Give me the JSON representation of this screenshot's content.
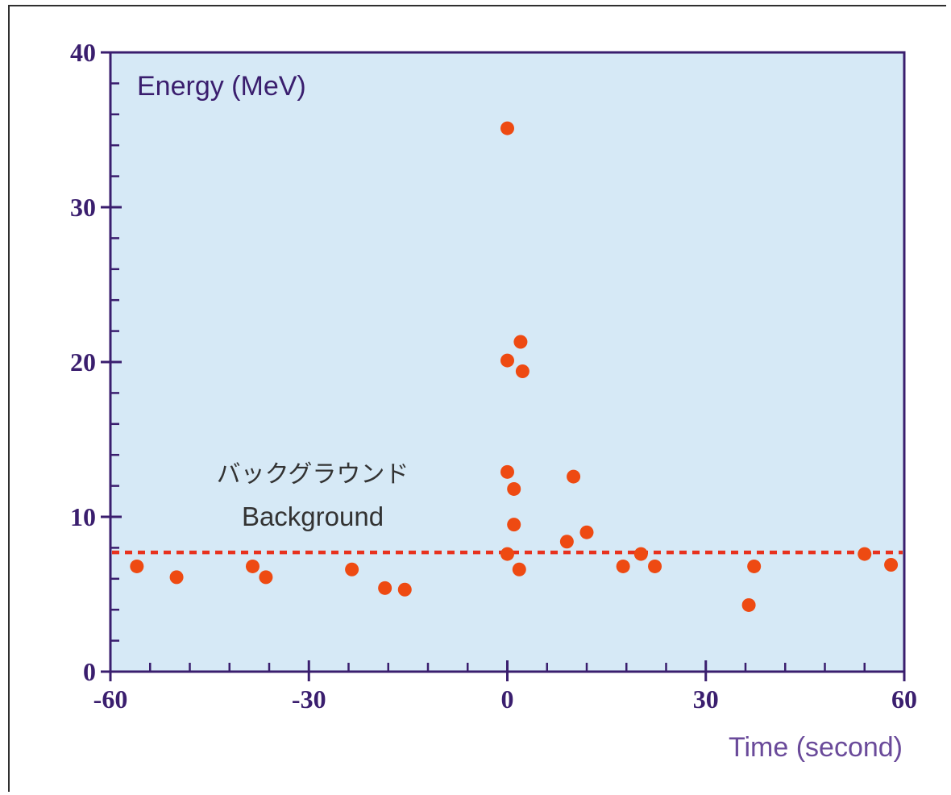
{
  "chart_data": {
    "type": "scatter",
    "ylabel": "Energy (MeV)",
    "xlabel": "Time (second)",
    "xlim": [
      -60,
      60
    ],
    "ylim": [
      0,
      40
    ],
    "x_ticks": [
      -60,
      -30,
      0,
      30,
      60
    ],
    "x_tick_labels": [
      "-60",
      "-30",
      "0",
      "30",
      "60"
    ],
    "y_ticks": [
      0,
      10,
      20,
      30,
      40
    ],
    "y_tick_labels": [
      "0",
      "10",
      "20",
      "30",
      "40"
    ],
    "grid": false,
    "legend": "none",
    "background_label_jp": "バックグラウンド",
    "background_label_en": "Background",
    "background_level": 7.7,
    "colors": {
      "plot_bg": "#d6e9f6",
      "axis": "#3a1e6e",
      "points": "#ee4a12",
      "dashed_line": "#e8321e",
      "tick_text": "#3a1e6e",
      "label_text": "#3a1e6e",
      "xlabel_text": "#6a4a9a",
      "annotation_text": "#333333"
    },
    "points": [
      {
        "x": -56,
        "y": 6.8
      },
      {
        "x": -50,
        "y": 6.1
      },
      {
        "x": -38.5,
        "y": 6.8
      },
      {
        "x": -36.5,
        "y": 6.1
      },
      {
        "x": -23.5,
        "y": 6.6
      },
      {
        "x": -18.5,
        "y": 5.4
      },
      {
        "x": -15.5,
        "y": 5.3
      },
      {
        "x": 0,
        "y": 35.1
      },
      {
        "x": 2,
        "y": 21.3
      },
      {
        "x": 0,
        "y": 20.1
      },
      {
        "x": 2.3,
        "y": 19.4
      },
      {
        "x": 0,
        "y": 12.9
      },
      {
        "x": 1,
        "y": 11.8
      },
      {
        "x": 10,
        "y": 12.6
      },
      {
        "x": 1,
        "y": 9.5
      },
      {
        "x": 12,
        "y": 9.0
      },
      {
        "x": 9,
        "y": 8.4
      },
      {
        "x": 0,
        "y": 7.6
      },
      {
        "x": 1.8,
        "y": 6.6
      },
      {
        "x": 17.5,
        "y": 6.8
      },
      {
        "x": 20.2,
        "y": 7.6
      },
      {
        "x": 22.3,
        "y": 6.8
      },
      {
        "x": 36.5,
        "y": 4.3
      },
      {
        "x": 37.3,
        "y": 6.8
      },
      {
        "x": 54,
        "y": 7.6
      },
      {
        "x": 58,
        "y": 6.9
      }
    ]
  }
}
